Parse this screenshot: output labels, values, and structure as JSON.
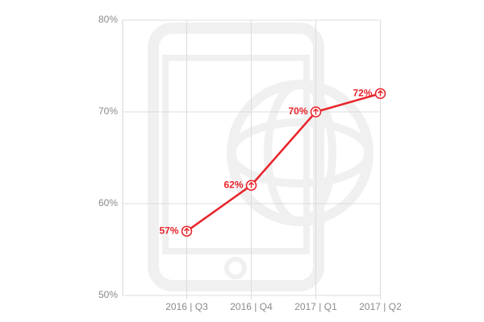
{
  "chart_data": {
    "type": "line",
    "categories": [
      "2016 | Q3",
      "2016 | Q4",
      "2017 | Q1",
      "2017 | Q2"
    ],
    "values": [
      57,
      62,
      70,
      72
    ],
    "value_labels": [
      "57%",
      "62%",
      "70%",
      "72%"
    ],
    "color": "#e8232a",
    "ylim": [
      50,
      80
    ],
    "yticks": [
      {
        "value": 50,
        "label": "50%"
      },
      {
        "value": 60,
        "label": "60%"
      },
      {
        "value": 70,
        "label": "70%"
      },
      {
        "value": 80,
        "label": "80%"
      }
    ],
    "grid": true
  }
}
